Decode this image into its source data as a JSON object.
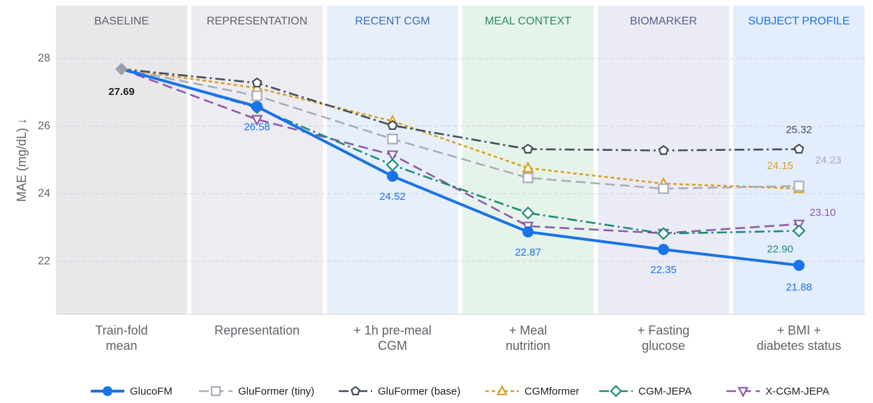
{
  "chart_data": {
    "type": "line",
    "ylabel": "MAE (mg/dL) ↓",
    "categories": [
      "Train-fold\nmean",
      "Representation",
      "+ 1h pre-meal\nCGM",
      "+ Meal\nnutrition",
      "+ Fasting\nglucose",
      "+ BMI +\ndiabetes status"
    ],
    "bands": [
      {
        "label": "BASELINE",
        "color": "#e8e8eb",
        "text_color": "#5f6368"
      },
      {
        "label": "REPRESENTATION",
        "color": "#ececf2",
        "text_color": "#5f6368"
      },
      {
        "label": "RECENT CGM",
        "color": "#e6effa",
        "text_color": "#3a6fb5"
      },
      {
        "label": "MEAL CONTEXT",
        "color": "#e5f3eb",
        "text_color": "#2e8b62"
      },
      {
        "label": "BIOMARKER",
        "color": "#ebebf6",
        "text_color": "#595f8c"
      },
      {
        "label": "SUBJECT PROFILE",
        "color": "#e3edfc",
        "text_color": "#1a73e8"
      }
    ],
    "ylim": [
      20.43,
      29.57
    ],
    "yticks": [
      22,
      24,
      26,
      28
    ],
    "grid": true,
    "legend": "bottom",
    "baseline_color": "#9aa0a6",
    "baseline_label_color": "#222222",
    "series": [
      {
        "name": "GlucoFM",
        "color": "#1a73e8",
        "dash": "solid",
        "marker": "circle",
        "values": [
          27.69,
          26.58,
          24.52,
          22.87,
          22.35,
          21.88
        ],
        "value_labels": [
          "27.69",
          "26.58",
          "24.52",
          "22.87",
          "22.35",
          "21.88"
        ]
      },
      {
        "name": "GluFormer (tiny)",
        "color": "#a9adbb",
        "dash": "dashed",
        "marker": "square",
        "values": [
          27.69,
          26.9,
          25.62,
          24.47,
          24.15,
          24.23
        ],
        "value_labels": [
          null,
          null,
          null,
          null,
          null,
          "24.23"
        ]
      },
      {
        "name": "GluFormer (base)",
        "color": "#454d5a",
        "dash": "dashdot",
        "marker": "pentagon",
        "values": [
          27.69,
          27.28,
          26.02,
          25.32,
          25.28,
          25.32
        ],
        "value_labels": [
          null,
          null,
          null,
          null,
          null,
          "25.32"
        ]
      },
      {
        "name": "CGMformer",
        "color": "#d9a01e",
        "dash": "dotted",
        "marker": "triangle-up",
        "values": [
          27.69,
          27.13,
          26.15,
          24.76,
          24.3,
          24.15
        ],
        "value_labels": [
          null,
          null,
          null,
          null,
          null,
          "24.15"
        ]
      },
      {
        "name": "CGM-JEPA",
        "color": "#1e8a78",
        "dash": "dashdot",
        "marker": "diamond",
        "values": [
          27.69,
          26.55,
          24.85,
          23.43,
          22.82,
          22.9
        ],
        "value_labels": [
          null,
          null,
          null,
          null,
          null,
          "22.90"
        ]
      },
      {
        "name": "X-CGM-JEPA",
        "color": "#8e5aa8",
        "dash": "dashed",
        "marker": "triangle-down",
        "values": [
          27.69,
          26.2,
          25.15,
          23.04,
          22.83,
          23.1
        ],
        "value_labels": [
          null,
          null,
          null,
          null,
          null,
          "23.10"
        ]
      }
    ]
  }
}
